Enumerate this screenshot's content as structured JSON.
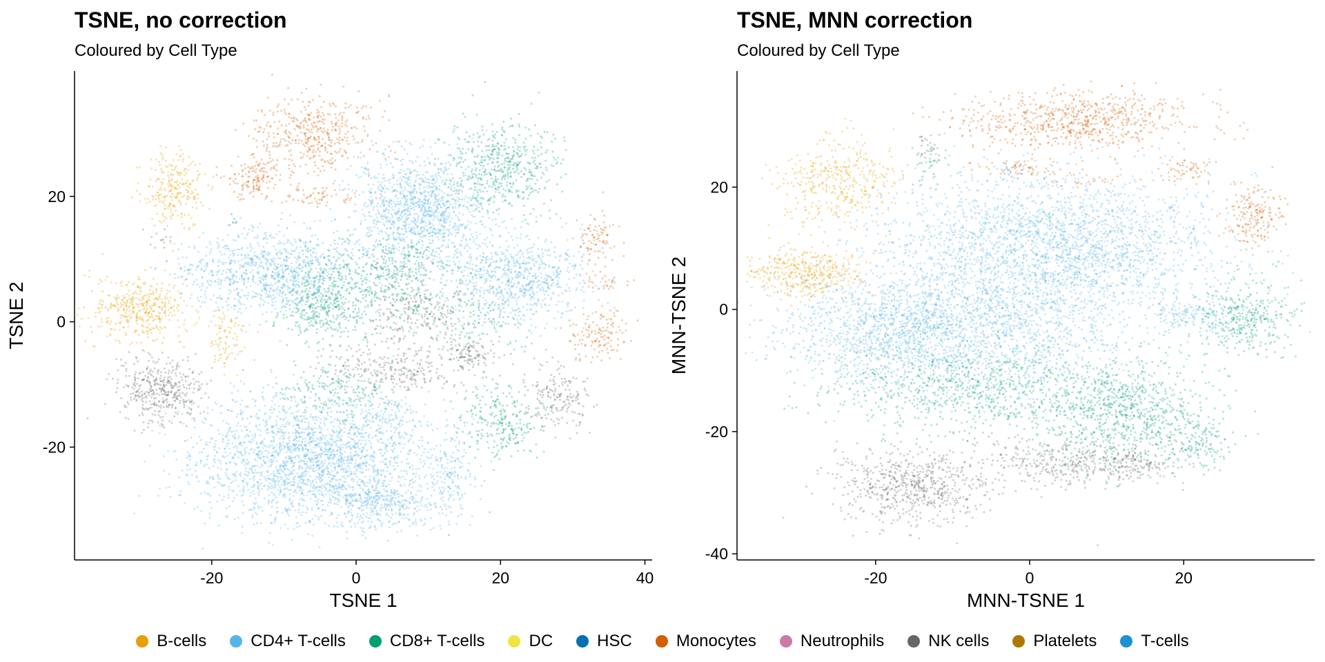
{
  "chart_data": [
    {
      "type": "scatter",
      "title": "TSNE, no correction",
      "subtitle": "Coloured by Cell Type",
      "xlabel": "TSNE 1",
      "ylabel": "TSNE 2",
      "xlim": [
        -39,
        41
      ],
      "ylim": [
        -38,
        40
      ],
      "xticks": [
        -20,
        0,
        20,
        40
      ],
      "yticks": [
        -20,
        0,
        20
      ],
      "grid": false,
      "clusters": [
        {
          "type": "B-cells",
          "cx": -25,
          "cy": 21,
          "sx": 2.2,
          "sy": 3.0,
          "n": 260
        },
        {
          "type": "B-cells",
          "cx": -30,
          "cy": 2,
          "sx": 3.3,
          "sy": 2.5,
          "n": 420
        },
        {
          "type": "B-cells",
          "cx": -18,
          "cy": -3,
          "sx": 1.3,
          "sy": 2.4,
          "n": 90
        },
        {
          "type": "Monocytes",
          "cx": -6,
          "cy": 30,
          "sx": 4.2,
          "sy": 3.0,
          "n": 420
        },
        {
          "type": "Monocytes",
          "cx": -14,
          "cy": 23,
          "sx": 2.0,
          "sy": 2.0,
          "n": 150
        },
        {
          "type": "Monocytes",
          "cx": -5,
          "cy": 20,
          "sx": 3.2,
          "sy": 0.7,
          "n": 60
        },
        {
          "type": "Monocytes",
          "cx": 33,
          "cy": 13,
          "sx": 1.4,
          "sy": 2.0,
          "n": 90
        },
        {
          "type": "Monocytes",
          "cx": 34,
          "cy": -2,
          "sx": 2.0,
          "sy": 2.2,
          "n": 130
        },
        {
          "type": "Monocytes",
          "cx": 35,
          "cy": 6,
          "sx": 1.4,
          "sy": 0.7,
          "n": 25
        },
        {
          "type": "CD8+ T-cells",
          "cx": 20,
          "cy": 25,
          "sx": 3.8,
          "sy": 3.5,
          "n": 500
        },
        {
          "type": "CD8+ T-cells",
          "cx": -5,
          "cy": 3,
          "sx": 2.8,
          "sy": 3.2,
          "n": 380
        },
        {
          "type": "CD8+ T-cells",
          "cx": 5,
          "cy": 7,
          "sx": 5.0,
          "sy": 4.0,
          "n": 520
        },
        {
          "type": "CD8+ T-cells",
          "cx": 20,
          "cy": -16,
          "sx": 2.6,
          "sy": 3.0,
          "n": 260
        },
        {
          "type": "CD8+ T-cells",
          "cx": -3,
          "cy": -11,
          "sx": 4.0,
          "sy": 2.2,
          "n": 200
        },
        {
          "type": "CD8+ T-cells",
          "cx": 17,
          "cy": 0,
          "sx": 4.0,
          "sy": 3.0,
          "n": 120
        },
        {
          "type": "CD4+ T-cells",
          "cx": 9,
          "cy": 18,
          "sx": 4.5,
          "sy": 4.3,
          "n": 1150
        },
        {
          "type": "CD4+ T-cells",
          "cx": 22,
          "cy": 7,
          "sx": 4.8,
          "sy": 3.5,
          "n": 780
        },
        {
          "type": "CD4+ T-cells",
          "cx": -12,
          "cy": 8,
          "sx": 6.2,
          "sy": 3.2,
          "n": 980
        },
        {
          "type": "CD4+ T-cells",
          "cx": -6,
          "cy": -22,
          "sx": 8.0,
          "sy": 5.0,
          "n": 2300
        },
        {
          "type": "CD4+ T-cells",
          "cx": 4,
          "cy": -29,
          "sx": 3.5,
          "sy": 2.0,
          "n": 300
        },
        {
          "type": "CD4+ T-cells",
          "cx": 13,
          "cy": -25,
          "sx": 1.5,
          "sy": 3.4,
          "n": 160
        },
        {
          "type": "CD4+ T-cells",
          "cx": 5,
          "cy": -15,
          "sx": 2.0,
          "sy": 1.5,
          "n": 90
        },
        {
          "type": "NK cells",
          "cx": -27,
          "cy": -11,
          "sx": 3.0,
          "sy": 2.6,
          "n": 420
        },
        {
          "type": "NK cells",
          "cx": 6,
          "cy": -8,
          "sx": 5.0,
          "sy": 1.6,
          "n": 230
        },
        {
          "type": "NK cells",
          "cx": 16,
          "cy": -5,
          "sx": 2.0,
          "sy": 1.3,
          "n": 110
        },
        {
          "type": "NK cells",
          "cx": 28,
          "cy": -12,
          "sx": 2.2,
          "sy": 2.5,
          "n": 180
        },
        {
          "type": "NK cells",
          "cx": 8,
          "cy": 1,
          "sx": 4.2,
          "sy": 3.0,
          "n": 260
        },
        {
          "type": "NK cells",
          "cx": -27,
          "cy": 13,
          "sx": 1.2,
          "sy": 1.0,
          "n": 14
        },
        {
          "type": "T-cells",
          "cx": -1,
          "cy": 1,
          "sx": 1.2,
          "sy": 0.4,
          "n": 12
        },
        {
          "type": "HSC",
          "cx": -17,
          "cy": 16,
          "sx": 0.4,
          "sy": 0.6,
          "n": 6
        }
      ]
    },
    {
      "type": "scatter",
      "title": "TSNE, MNN correction",
      "subtitle": "Coloured by Cell Type",
      "xlabel": "MNN-TSNE 1",
      "ylabel": "MNN-TSNE 2",
      "xlim": [
        -38,
        37
      ],
      "ylim": [
        -41,
        39
      ],
      "xticks": [
        -20,
        0,
        20
      ],
      "yticks": [
        -40,
        -20,
        0,
        20
      ],
      "grid": false,
      "clusters": [
        {
          "type": "B-cells",
          "cx": -25,
          "cy": 21,
          "sx": 3.8,
          "sy": 3.5,
          "n": 380
        },
        {
          "type": "B-cells",
          "cx": -29,
          "cy": 6,
          "sx": 3.6,
          "sy": 1.8,
          "n": 400
        },
        {
          "type": "Monocytes",
          "cx": 6,
          "cy": 31,
          "sx": 7.5,
          "sy": 2.4,
          "n": 700
        },
        {
          "type": "Monocytes",
          "cx": 29,
          "cy": 15,
          "sx": 1.8,
          "sy": 2.5,
          "n": 180
        },
        {
          "type": "Monocytes",
          "cx": 20,
          "cy": 23,
          "sx": 1.8,
          "sy": 1.0,
          "n": 60
        },
        {
          "type": "Monocytes",
          "cx": -1,
          "cy": 23,
          "sx": 3.0,
          "sy": 0.8,
          "n": 60
        },
        {
          "type": "Monocytes",
          "cx": 8,
          "cy": 21,
          "sx": 2.0,
          "sy": 0.5,
          "n": 20
        },
        {
          "type": "CD8+ T-cells",
          "cx": 28,
          "cy": -1,
          "sx": 3.2,
          "sy": 3.0,
          "n": 360
        },
        {
          "type": "CD8+ T-cells",
          "cx": -8,
          "cy": -13,
          "sx": 9.0,
          "sy": 3.5,
          "n": 800
        },
        {
          "type": "CD8+ T-cells",
          "cx": 12,
          "cy": -17,
          "sx": 5.5,
          "sy": 4.5,
          "n": 900
        },
        {
          "type": "CD8+ T-cells",
          "cx": 22,
          "cy": -22,
          "sx": 2.0,
          "sy": 2.0,
          "n": 120
        },
        {
          "type": "CD8+ T-cells",
          "cx": -13,
          "cy": 24,
          "sx": 1.2,
          "sy": 2.0,
          "n": 35
        },
        {
          "type": "CD4+ T-cells",
          "cx": 3,
          "cy": 10,
          "sx": 10.5,
          "sy": 6.0,
          "n": 2600
        },
        {
          "type": "CD4+ T-cells",
          "cx": -17,
          "cy": -3,
          "sx": 7.5,
          "sy": 4.5,
          "n": 1400
        },
        {
          "type": "CD4+ T-cells",
          "cx": -3,
          "cy": -4,
          "sx": 8.0,
          "sy": 5.0,
          "n": 800
        },
        {
          "type": "CD4+ T-cells",
          "cx": 21,
          "cy": -1,
          "sx": 2.5,
          "sy": 1.3,
          "n": 120
        },
        {
          "type": "NK cells",
          "cx": -15,
          "cy": -29,
          "sx": 5.0,
          "sy": 3.0,
          "n": 650
        },
        {
          "type": "NK cells",
          "cx": 4,
          "cy": -25,
          "sx": 5.0,
          "sy": 2.0,
          "n": 300
        },
        {
          "type": "NK cells",
          "cx": 14,
          "cy": -25,
          "sx": 3.0,
          "sy": 1.5,
          "n": 150
        },
        {
          "type": "NK cells",
          "cx": -13,
          "cy": 27,
          "sx": 0.8,
          "sy": 1.6,
          "n": 28
        },
        {
          "type": "T-cells",
          "cx": -3,
          "cy": 22,
          "sx": 0.3,
          "sy": 0.6,
          "n": 8
        }
      ]
    }
  ],
  "legend": {
    "items": [
      {
        "label": "B-cells",
        "color": "#E69F00"
      },
      {
        "label": "CD4+ T-cells",
        "color": "#56B4E9"
      },
      {
        "label": "CD8+ T-cells",
        "color": "#009E73"
      },
      {
        "label": "DC",
        "color": "#F0E442"
      },
      {
        "label": "HSC",
        "color": "#0072B2"
      },
      {
        "label": "Monocytes",
        "color": "#D55E00"
      },
      {
        "label": "Neutrophils",
        "color": "#CC79A7"
      },
      {
        "label": "NK cells",
        "color": "#666666"
      },
      {
        "label": "Platelets",
        "color": "#AD7700"
      },
      {
        "label": "T-cells",
        "color": "#1C91D4"
      }
    ]
  }
}
